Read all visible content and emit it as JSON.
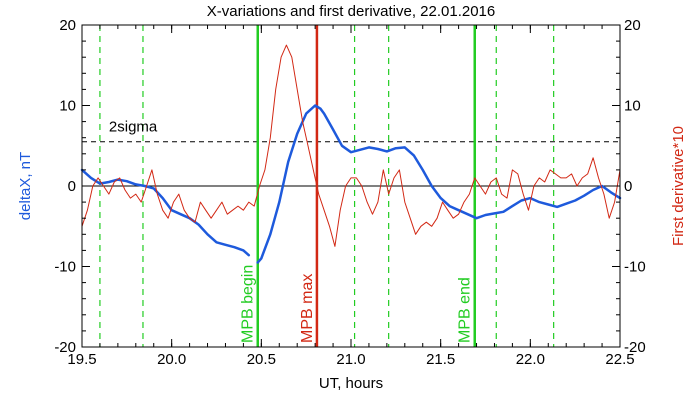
{
  "chart_data": {
    "type": "line",
    "title": "X-variations and first derivative, 22.01.2016",
    "xlabel": "UT, hours",
    "ylabel_left": "deltaX, nT",
    "ylabel_right": "First derivative*10",
    "xlim": [
      19.5,
      22.5
    ],
    "ylim_left": [
      -20,
      20
    ],
    "ylim_right": [
      -20,
      20
    ],
    "x_ticks": [
      "19.5",
      "20.0",
      "20.5",
      "21.0",
      "21.5",
      "22.0",
      "22.5"
    ],
    "y_ticks_left": [
      "-20",
      "-10",
      "0",
      "10",
      "20"
    ],
    "y_ticks_right": [
      "-20",
      "-10",
      "0",
      "10",
      "20"
    ],
    "sigma_label": "2sigma",
    "sigma_level": 5.5,
    "colors": {
      "deltax": "#1e5adc",
      "derivative": "#d22814",
      "boundary": "#22cc22",
      "max": "#d22814",
      "axis": "#000000"
    },
    "series": [
      {
        "name": "deltaX, nT",
        "axis": "left",
        "x": [
          19.5,
          19.55,
          19.6,
          19.65,
          19.7,
          19.75,
          19.8,
          19.85,
          19.9,
          19.95,
          20.0,
          20.05,
          20.1,
          20.15,
          20.2,
          20.25,
          20.3,
          20.35,
          20.4,
          20.43
        ],
        "y": [
          2.0,
          1.0,
          0.3,
          0.5,
          0.8,
          0.6,
          0.2,
          0.0,
          -0.3,
          -1.5,
          -3.0,
          -3.5,
          -4.0,
          -4.8,
          -6.0,
          -7.0,
          -7.3,
          -7.6,
          -8.0,
          -8.6
        ]
      },
      {
        "name": "deltaX, nT",
        "axis": "left",
        "x": [
          20.48,
          20.5,
          20.55,
          20.6,
          20.65,
          20.7,
          20.75,
          20.8,
          20.83,
          20.85,
          20.9,
          20.95,
          21.0,
          21.05,
          21.1,
          21.15,
          21.2,
          21.25,
          21.3,
          21.35,
          21.4,
          21.45,
          21.5,
          21.55,
          21.6,
          21.65,
          21.7,
          21.75,
          21.8,
          21.85,
          21.9,
          21.95,
          22.0,
          22.05,
          22.1,
          22.15,
          22.2,
          22.25,
          22.3,
          22.35,
          22.4,
          22.45,
          22.5
        ],
        "y": [
          -9.5,
          -9.0,
          -6.0,
          -2.0,
          3.0,
          6.5,
          9.0,
          10.0,
          9.6,
          9.0,
          7.0,
          5.0,
          4.2,
          4.5,
          4.8,
          4.6,
          4.3,
          4.7,
          4.8,
          3.8,
          2.0,
          0.0,
          -1.5,
          -2.5,
          -3.0,
          -3.5,
          -4.0,
          -3.6,
          -3.4,
          -3.2,
          -2.5,
          -1.8,
          -1.5,
          -2.0,
          -2.3,
          -2.6,
          -2.2,
          -1.8,
          -1.2,
          -0.5,
          0.0,
          -0.8,
          -1.5
        ]
      },
      {
        "name": "First derivative*10",
        "axis": "right",
        "x": [
          19.5,
          19.53,
          19.56,
          19.59,
          19.62,
          19.65,
          19.68,
          19.71,
          19.74,
          19.77,
          19.8,
          19.83,
          19.86,
          19.89,
          19.92,
          19.95,
          19.98,
          20.01,
          20.04,
          20.07,
          20.1,
          20.13,
          20.16,
          20.19,
          20.22,
          20.25,
          20.28,
          20.31,
          20.34,
          20.37,
          20.4,
          20.43,
          20.46,
          20.49,
          20.52,
          20.55,
          20.58,
          20.61,
          20.64,
          20.67,
          20.7,
          20.73,
          20.76,
          20.79,
          20.82,
          20.85,
          20.88,
          20.91,
          20.94,
          20.97,
          21.0,
          21.03,
          21.06,
          21.09,
          21.12,
          21.15,
          21.18,
          21.21,
          21.24,
          21.27,
          21.3,
          21.33,
          21.36,
          21.39,
          21.42,
          21.45,
          21.48,
          21.51,
          21.54,
          21.57,
          21.6,
          21.63,
          21.66,
          21.69,
          21.72,
          21.75,
          21.78,
          21.81,
          21.84,
          21.87,
          21.9,
          21.93,
          21.96,
          21.99,
          22.02,
          22.05,
          22.08,
          22.11,
          22.14,
          22.17,
          22.2,
          22.23,
          22.26,
          22.29,
          22.32,
          22.35,
          22.38,
          22.41,
          22.44,
          22.47,
          22.5
        ],
        "y": [
          -5,
          -3,
          0,
          1,
          0,
          -1,
          0.5,
          1,
          -0.5,
          -1.5,
          -1,
          -2,
          0,
          2,
          -1,
          -3,
          -4,
          -2,
          -1,
          -3,
          -4,
          -4.5,
          -2,
          -3,
          -4,
          -3,
          -2,
          -3.5,
          -3,
          -2.5,
          -3,
          -2,
          -2.5,
          0,
          2,
          6,
          12,
          16,
          17.5,
          16,
          12,
          8,
          5,
          2,
          -1,
          -3,
          -5,
          -7.5,
          -3,
          0,
          1,
          1,
          0,
          -2,
          -3.5,
          -2,
          2,
          -1,
          1,
          2,
          -2,
          -4,
          -6,
          -5,
          -4.5,
          -5,
          -4,
          -2,
          -3,
          -4,
          -3.5,
          -2,
          -1,
          1,
          0,
          -1,
          0.5,
          1,
          -1,
          -1.5,
          2,
          1.5,
          -1,
          -3,
          0,
          1,
          0.5,
          2,
          1.5,
          1,
          1,
          1.5,
          0,
          1,
          1.5,
          3.5,
          1,
          -1,
          -4,
          -2,
          2
        ]
      }
    ],
    "markers": [
      {
        "x": 20.48,
        "label": "MPB begin",
        "style": "solid",
        "kind": "boundary"
      },
      {
        "x": 20.81,
        "label": "MPB max",
        "style": "solid",
        "kind": "max"
      },
      {
        "x": 21.69,
        "label": "MPB end",
        "style": "solid",
        "kind": "boundary"
      },
      {
        "x": 19.6,
        "label": "",
        "style": "dashed",
        "kind": "boundary"
      },
      {
        "x": 19.84,
        "label": "",
        "style": "dashed",
        "kind": "boundary"
      },
      {
        "x": 21.02,
        "label": "",
        "style": "dashed",
        "kind": "boundary"
      },
      {
        "x": 21.21,
        "label": "",
        "style": "dashed",
        "kind": "boundary"
      },
      {
        "x": 21.81,
        "label": "",
        "style": "dashed",
        "kind": "boundary"
      },
      {
        "x": 22.13,
        "label": "",
        "style": "dashed",
        "kind": "boundary"
      }
    ]
  }
}
